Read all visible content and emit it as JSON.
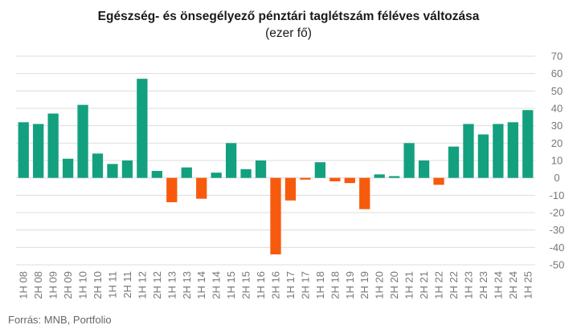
{
  "chart_data": {
    "type": "bar",
    "title": "Egészség- és önsegélyező pénztári taglétszám féléves változása",
    "subtitle": "(ezer fő)",
    "source": "Forrás: MNB, Portfolio",
    "categories": [
      "1H 08",
      "2H 08",
      "1H 09",
      "2H 09",
      "1H 10",
      "2H 10",
      "1H 11",
      "2H 11",
      "1H 12",
      "2H 12",
      "1H 13",
      "2H 13",
      "1H 14",
      "2H 14",
      "1H 15",
      "2H 15",
      "1H 16",
      "2H 16",
      "1H 17",
      "2H 17",
      "1H 18",
      "2H 18",
      "1H 19",
      "2H 19",
      "1H 20",
      "2H 20",
      "1H 21",
      "2H 21",
      "1H 22",
      "2H 22",
      "1H 23",
      "2H 23",
      "1H 24",
      "2H 24",
      "1H 25"
    ],
    "values": [
      32,
      31,
      37,
      11,
      42,
      14,
      8,
      10,
      57,
      4,
      -14,
      6,
      -12,
      3,
      20,
      5,
      10,
      -44,
      -13,
      -1,
      9,
      -2,
      -3,
      -18,
      2,
      1,
      20,
      10,
      -4,
      18,
      31,
      25,
      31,
      32,
      39
    ],
    "ylim": [
      -50,
      70
    ],
    "yticks": [
      70,
      60,
      50,
      40,
      30,
      20,
      10,
      0,
      -10,
      -20,
      -30,
      -40,
      -50
    ],
    "colors": {
      "positive": "#13a07e",
      "negative": "#f75a0d",
      "grid": "#dddddd"
    },
    "grid": true,
    "legend": "none"
  }
}
